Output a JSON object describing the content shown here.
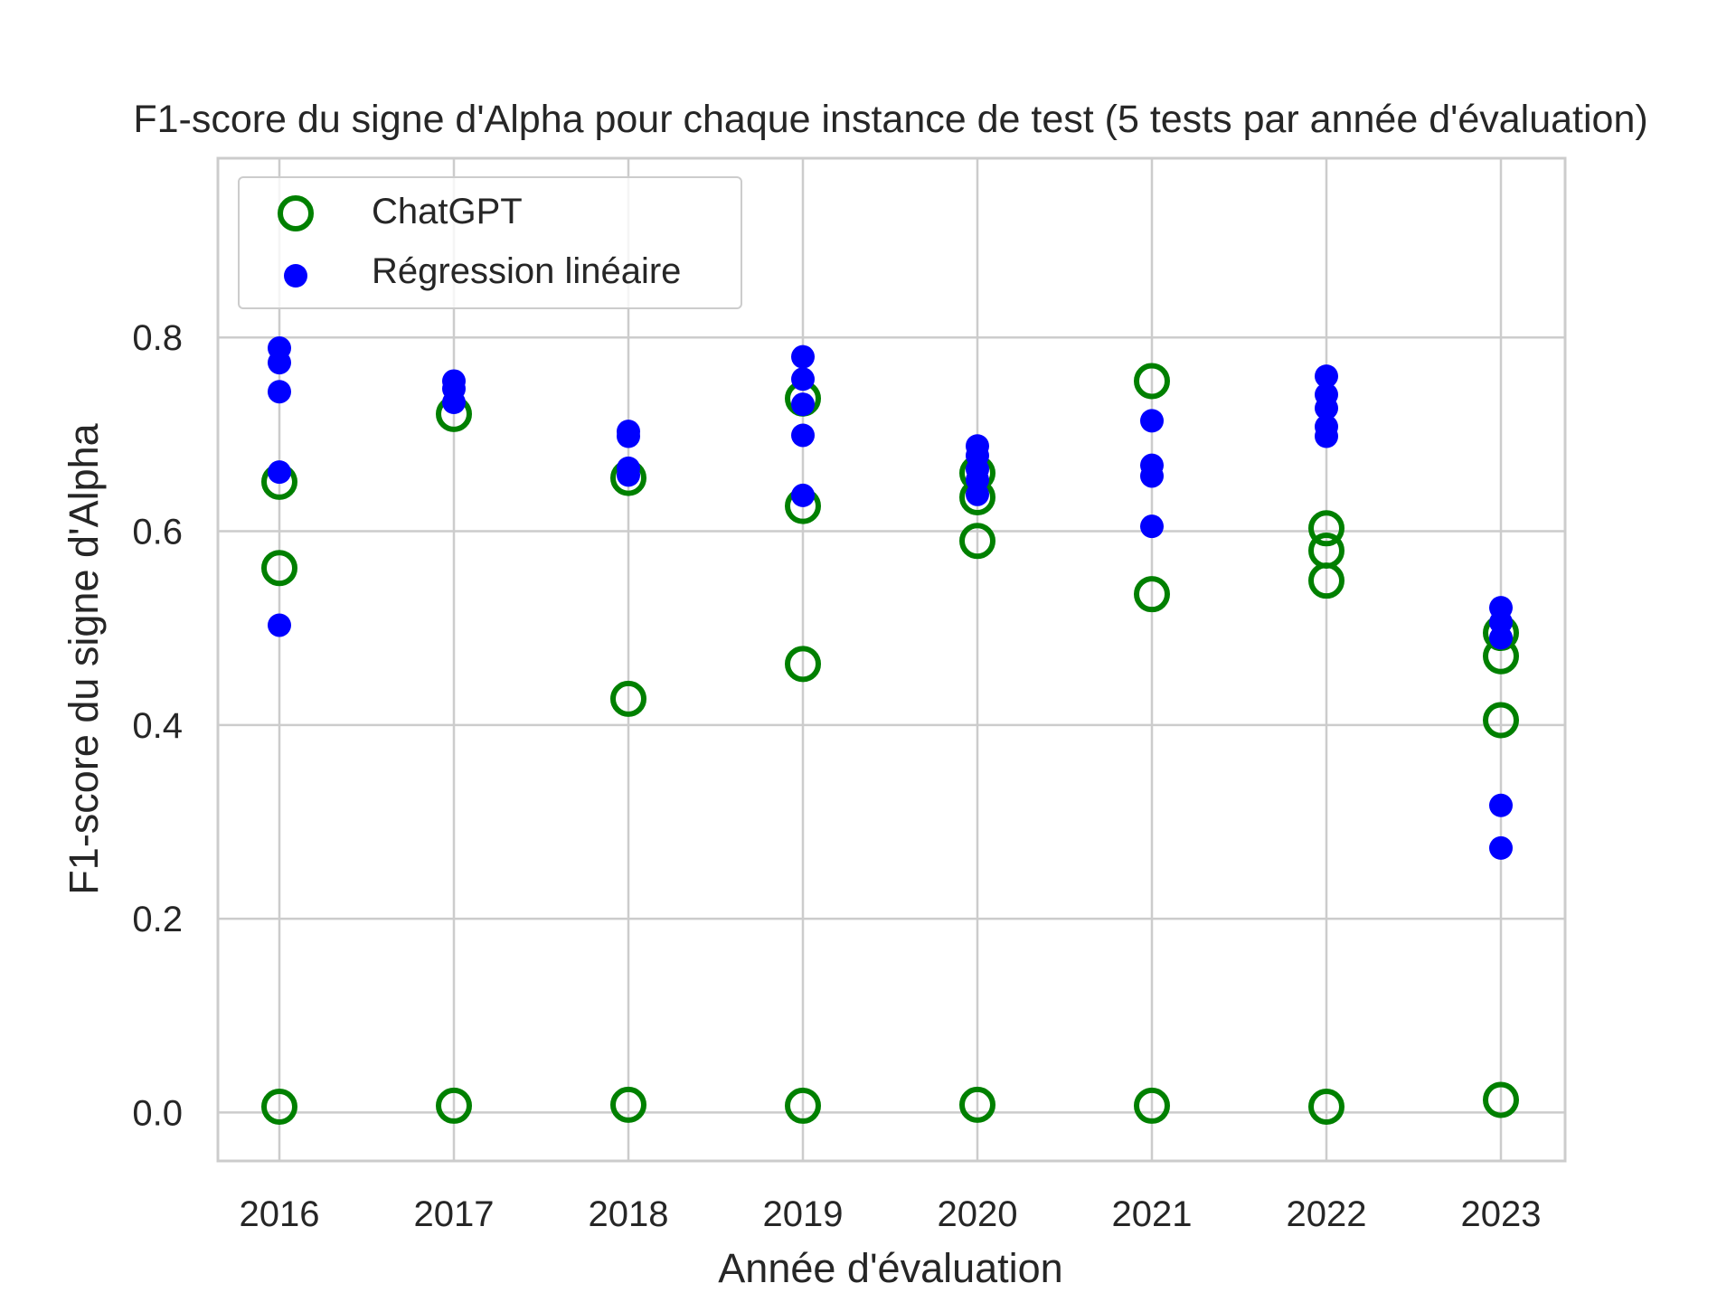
{
  "chart_data": {
    "type": "scatter",
    "title": "F1-score du signe d'Alpha pour chaque instance de test (5 tests par année d'évaluation)",
    "xlabel": "Année d'évaluation",
    "ylabel": "F1-score du signe d'Alpha",
    "categories": [
      "2016",
      "2017",
      "2018",
      "2019",
      "2020",
      "2021",
      "2022",
      "2023"
    ],
    "ylim": [
      -0.05,
      0.985
    ],
    "yticks": [
      "0.0",
      "0.2",
      "0.4",
      "0.6",
      "0.8"
    ],
    "grid": true,
    "legend_position": "top-left",
    "series": [
      {
        "name": "ChatGPT",
        "marker": "hollow-circle",
        "color": "#008000",
        "points": [
          {
            "x": "2016",
            "y": 0.651
          },
          {
            "x": "2016",
            "y": 0.562
          },
          {
            "x": "2016",
            "y": 0.006
          },
          {
            "x": "2017",
            "y": 0.721
          },
          {
            "x": "2017",
            "y": 0.007
          },
          {
            "x": "2018",
            "y": 0.655
          },
          {
            "x": "2018",
            "y": 0.427
          },
          {
            "x": "2018",
            "y": 0.008
          },
          {
            "x": "2019",
            "y": 0.737
          },
          {
            "x": "2019",
            "y": 0.626
          },
          {
            "x": "2019",
            "y": 0.463
          },
          {
            "x": "2019",
            "y": 0.007
          },
          {
            "x": "2020",
            "y": 0.66
          },
          {
            "x": "2020",
            "y": 0.635
          },
          {
            "x": "2020",
            "y": 0.59
          },
          {
            "x": "2020",
            "y": 0.008
          },
          {
            "x": "2021",
            "y": 0.755
          },
          {
            "x": "2021",
            "y": 0.535
          },
          {
            "x": "2021",
            "y": 0.007
          },
          {
            "x": "2022",
            "y": 0.603
          },
          {
            "x": "2022",
            "y": 0.58
          },
          {
            "x": "2022",
            "y": 0.549
          },
          {
            "x": "2022",
            "y": 0.006
          },
          {
            "x": "2023",
            "y": 0.495
          },
          {
            "x": "2023",
            "y": 0.471
          },
          {
            "x": "2023",
            "y": 0.405
          },
          {
            "x": "2023",
            "y": 0.013
          }
        ]
      },
      {
        "name": "Régression linéaire",
        "marker": "filled-circle",
        "color": "#0000ff",
        "points": [
          {
            "x": "2016",
            "y": 0.789
          },
          {
            "x": "2016",
            "y": 0.774
          },
          {
            "x": "2016",
            "y": 0.744
          },
          {
            "x": "2016",
            "y": 0.661
          },
          {
            "x": "2016",
            "y": 0.503
          },
          {
            "x": "2017",
            "y": 0.755
          },
          {
            "x": "2017",
            "y": 0.747
          },
          {
            "x": "2017",
            "y": 0.733
          },
          {
            "x": "2018",
            "y": 0.703
          },
          {
            "x": "2018",
            "y": 0.698
          },
          {
            "x": "2018",
            "y": 0.665
          },
          {
            "x": "2018",
            "y": 0.658
          },
          {
            "x": "2019",
            "y": 0.78
          },
          {
            "x": "2019",
            "y": 0.757
          },
          {
            "x": "2019",
            "y": 0.731
          },
          {
            "x": "2019",
            "y": 0.699
          },
          {
            "x": "2019",
            "y": 0.637
          },
          {
            "x": "2020",
            "y": 0.688
          },
          {
            "x": "2020",
            "y": 0.678
          },
          {
            "x": "2020",
            "y": 0.664
          },
          {
            "x": "2020",
            "y": 0.653
          },
          {
            "x": "2020",
            "y": 0.638
          },
          {
            "x": "2021",
            "y": 0.714
          },
          {
            "x": "2021",
            "y": 0.668
          },
          {
            "x": "2021",
            "y": 0.657
          },
          {
            "x": "2021",
            "y": 0.605
          },
          {
            "x": "2022",
            "y": 0.76
          },
          {
            "x": "2022",
            "y": 0.741
          },
          {
            "x": "2022",
            "y": 0.727
          },
          {
            "x": "2022",
            "y": 0.708
          },
          {
            "x": "2022",
            "y": 0.698
          },
          {
            "x": "2023",
            "y": 0.521
          },
          {
            "x": "2023",
            "y": 0.506
          },
          {
            "x": "2023",
            "y": 0.49
          },
          {
            "x": "2023",
            "y": 0.317
          },
          {
            "x": "2023",
            "y": 0.273
          }
        ]
      }
    ]
  }
}
